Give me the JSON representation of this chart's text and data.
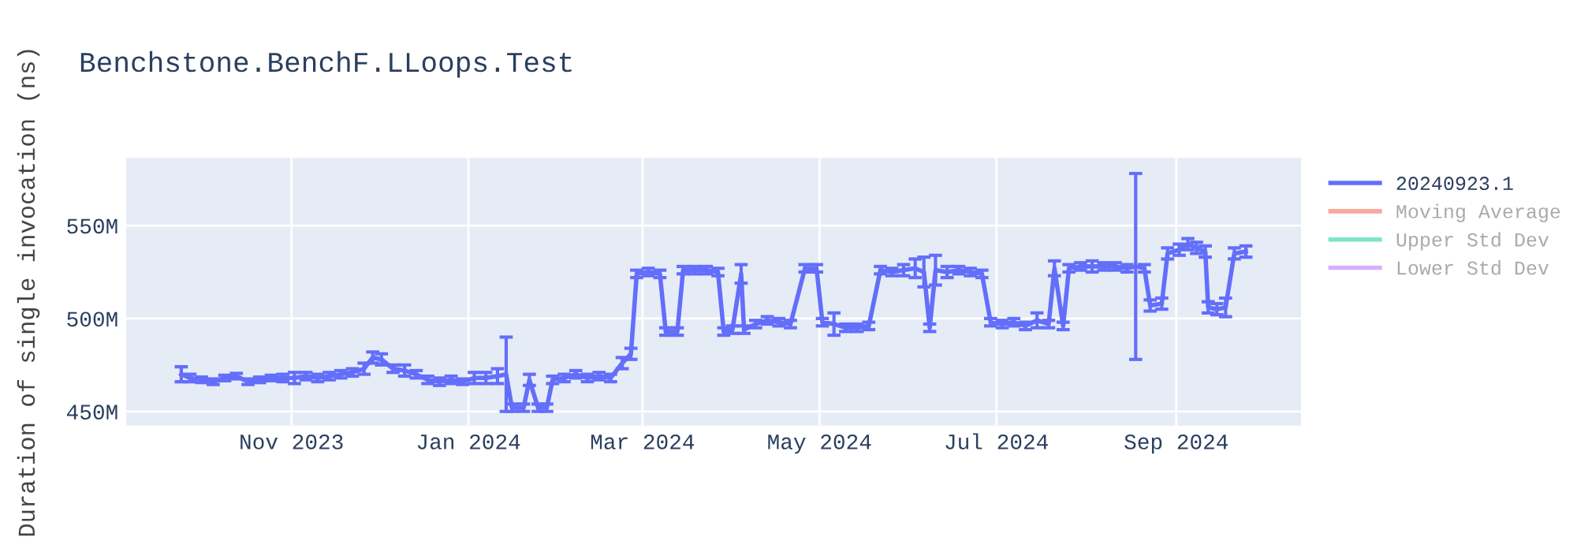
{
  "chart_data": {
    "type": "line",
    "title": "Benchstone.BenchF.LLoops.Test",
    "ylabel": "Duration of single invocation (ns)",
    "x": [
      "2023-09-24",
      "2023-09-27",
      "2023-10-01",
      "2023-10-05",
      "2023-10-09",
      "2023-10-13",
      "2023-10-17",
      "2023-10-21",
      "2023-10-25",
      "2023-10-29",
      "2023-11-02",
      "2023-11-06",
      "2023-11-10",
      "2023-11-14",
      "2023-11-18",
      "2023-11-22",
      "2023-11-26",
      "2023-11-29",
      "2023-12-02",
      "2023-12-06",
      "2023-12-10",
      "2023-12-14",
      "2023-12-18",
      "2023-12-22",
      "2023-12-26",
      "2023-12-30",
      "2024-01-03",
      "2024-01-07",
      "2024-01-11",
      "2024-01-14",
      "2024-01-16",
      "2024-01-20",
      "2024-01-22",
      "2024-01-25",
      "2024-01-28",
      "2024-01-30",
      "2024-02-03",
      "2024-02-07",
      "2024-02-11",
      "2024-02-15",
      "2024-02-19",
      "2024-02-23",
      "2024-02-26",
      "2024-02-28",
      "2024-03-03",
      "2024-03-07",
      "2024-03-09",
      "2024-03-13",
      "2024-03-15",
      "2024-03-19",
      "2024-03-23",
      "2024-03-27",
      "2024-03-29",
      "2024-04-01",
      "2024-04-04",
      "2024-04-05",
      "2024-04-09",
      "2024-04-13",
      "2024-04-17",
      "2024-04-21",
      "2024-04-26",
      "2024-04-30",
      "2024-05-02",
      "2024-05-06",
      "2024-05-10",
      "2024-05-14",
      "2024-05-18",
      "2024-05-22",
      "2024-05-26",
      "2024-05-30",
      "2024-06-03",
      "2024-06-06",
      "2024-06-08",
      "2024-06-10",
      "2024-06-14",
      "2024-06-18",
      "2024-06-22",
      "2024-06-26",
      "2024-06-29",
      "2024-07-03",
      "2024-07-07",
      "2024-07-11",
      "2024-07-15",
      "2024-07-19",
      "2024-07-21",
      "2024-07-24",
      "2024-07-26",
      "2024-07-30",
      "2024-08-03",
      "2024-08-07",
      "2024-08-11",
      "2024-08-15",
      "2024-08-18",
      "2024-08-21",
      "2024-08-23",
      "2024-08-27",
      "2024-08-29",
      "2024-09-02",
      "2024-09-05",
      "2024-09-08",
      "2024-09-11",
      "2024-09-12",
      "2024-09-15",
      "2024-09-18",
      "2024-09-21",
      "2024-09-25"
    ],
    "series": [
      {
        "name": "20240923.1",
        "color": "#636efa",
        "values": [
          470000000,
          468000000,
          467000000,
          466000000,
          468000000,
          469000000,
          466000000,
          467000000,
          468000000,
          468000000,
          468000000,
          469000000,
          468000000,
          469000000,
          470000000,
          471000000,
          473000000,
          479000000,
          478000000,
          473000000,
          472000000,
          470000000,
          467000000,
          466000000,
          467000000,
          466000000,
          468000000,
          468000000,
          469000000,
          470000000,
          452000000,
          452000000,
          467000000,
          452000000,
          452000000,
          467000000,
          468000000,
          470000000,
          468000000,
          469000000,
          468000000,
          476000000,
          481000000,
          524000000,
          525000000,
          524000000,
          493000000,
          493000000,
          526000000,
          526000000,
          526000000,
          525000000,
          493000000,
          494000000,
          524000000,
          494000000,
          497000000,
          499000000,
          498000000,
          497000000,
          527000000,
          527000000,
          498000000,
          497000000,
          495000000,
          495000000,
          496000000,
          526000000,
          525000000,
          526000000,
          527000000,
          525000000,
          495000000,
          526000000,
          525000000,
          526000000,
          525000000,
          524000000,
          498000000,
          497000000,
          498000000,
          496000000,
          499000000,
          497000000,
          527000000,
          496000000,
          527000000,
          528000000,
          528000000,
          528000000,
          528000000,
          527000000,
          528000000,
          527000000,
          507000000,
          508000000,
          535000000,
          537000000,
          540000000,
          538000000,
          536000000,
          506000000,
          505000000,
          506000000,
          535000000,
          536000000
        ],
        "errors": [
          4000000,
          2000000,
          1500000,
          1500000,
          1500000,
          1500000,
          1500000,
          1500000,
          1500000,
          2000000,
          3000000,
          2000000,
          2000000,
          2000000,
          2000000,
          2000000,
          3000000,
          3000000,
          3000000,
          2000000,
          3000000,
          2000000,
          2000000,
          2000000,
          2000000,
          1500000,
          3000000,
          3000000,
          4000000,
          20000000,
          2000000,
          2000000,
          3000000,
          2000000,
          2000000,
          2000000,
          2000000,
          2000000,
          2000000,
          2000000,
          2000000,
          3000000,
          3000000,
          2000000,
          2000000,
          2000000,
          2000000,
          2000000,
          2000000,
          2000000,
          2000000,
          2000000,
          2000000,
          2000000,
          5000000,
          2000000,
          2000000,
          2000000,
          2000000,
          2000000,
          2000000,
          2000000,
          2000000,
          6000000,
          2000000,
          2000000,
          2000000,
          2000000,
          2000000,
          3000000,
          5000000,
          8000000,
          2000000,
          8000000,
          3000000,
          2000000,
          2000000,
          2000000,
          2000000,
          2000000,
          2000000,
          2000000,
          4000000,
          2000000,
          4000000,
          2000000,
          2000000,
          2000000,
          3000000,
          2000000,
          2000000,
          2000000,
          50000000,
          2000000,
          3000000,
          3000000,
          3000000,
          3000000,
          3000000,
          3000000,
          3000000,
          3000000,
          3000000,
          5000000,
          3000000,
          3000000
        ]
      },
      {
        "name": "Moving Average",
        "color": "#ef553b",
        "values": [
          null,
          null,
          null,
          null,
          null,
          null,
          null,
          null,
          null,
          null,
          null,
          null,
          null,
          null,
          null,
          null,
          null,
          null,
          null,
          null,
          null,
          null,
          null,
          null,
          null,
          null,
          null,
          null,
          null,
          null,
          null,
          null,
          null,
          null,
          null,
          null,
          null,
          null,
          null,
          null,
          null,
          null,
          null,
          null,
          null,
          null,
          null,
          null,
          null,
          null,
          null,
          null,
          null,
          null,
          null,
          null,
          null,
          null,
          null,
          null,
          null,
          null,
          null,
          null,
          null,
          null,
          null,
          null,
          null,
          null,
          null,
          null,
          null,
          null,
          null,
          null,
          null,
          null,
          null,
          null,
          null,
          null,
          null,
          null,
          null,
          null,
          null,
          null,
          null,
          null,
          null,
          null,
          null,
          null,
          null,
          null,
          null,
          null,
          null,
          null,
          null,
          null,
          null,
          null,
          null,
          null
        ]
      },
      {
        "name": "Upper Std Dev",
        "color": "#00cc96",
        "values": [
          null,
          null,
          null,
          null,
          null,
          null,
          null,
          null,
          null,
          null,
          null,
          null,
          null,
          null,
          null,
          null,
          null,
          null,
          null,
          null,
          null,
          null,
          null,
          null,
          null,
          null,
          null,
          null,
          null,
          null,
          null,
          null,
          null,
          null,
          null,
          null,
          null,
          null,
          null,
          null,
          null,
          null,
          null,
          null,
          null,
          null,
          null,
          null,
          null,
          null,
          null,
          null,
          null,
          null,
          null,
          null,
          null,
          null,
          null,
          null,
          null,
          null,
          null,
          null,
          null,
          null,
          null,
          null,
          null,
          null,
          null,
          null,
          null,
          null,
          null,
          null,
          null,
          null,
          null,
          null,
          null,
          null,
          null,
          null,
          null,
          null,
          null,
          null,
          null,
          null,
          null,
          null,
          null,
          null,
          null,
          null,
          null,
          null,
          null,
          null,
          null,
          null,
          null,
          null,
          null,
          null
        ]
      },
      {
        "name": "Lower Std Dev",
        "color": "#ab63fa",
        "values": [
          null,
          null,
          null,
          null,
          null,
          null,
          null,
          null,
          null,
          null,
          null,
          null,
          null,
          null,
          null,
          null,
          null,
          null,
          null,
          null,
          null,
          null,
          null,
          null,
          null,
          null,
          null,
          null,
          null,
          null,
          null,
          null,
          null,
          null,
          null,
          null,
          null,
          null,
          null,
          null,
          null,
          null,
          null,
          null,
          null,
          null,
          null,
          null,
          null,
          null,
          null,
          null,
          null,
          null,
          null,
          null,
          null,
          null,
          null,
          null,
          null,
          null,
          null,
          null,
          null,
          null,
          null,
          null,
          null,
          null,
          null,
          null,
          null,
          null,
          null,
          null,
          null,
          null,
          null,
          null,
          null,
          null,
          null,
          null,
          null,
          null,
          null,
          null,
          null,
          null,
          null,
          null,
          null,
          null,
          null,
          null,
          null,
          null,
          null,
          null,
          null,
          null,
          null,
          null,
          null,
          null
        ]
      }
    ],
    "xlim": [
      "2023-09-05",
      "2024-10-14"
    ],
    "xticks": [
      {
        "value": "2023-11-01",
        "label": "Nov 2023"
      },
      {
        "value": "2024-01-01",
        "label": "Jan 2024"
      },
      {
        "value": "2024-03-01",
        "label": "Mar 2024"
      },
      {
        "value": "2024-05-01",
        "label": "May 2024"
      },
      {
        "value": "2024-07-01",
        "label": "Jul 2024"
      },
      {
        "value": "2024-09-01",
        "label": "Sep 2024"
      }
    ],
    "ylim": [
      442400000,
      586400000
    ],
    "yticks": [
      {
        "value": 450000000,
        "label": "450M"
      },
      {
        "value": 500000000,
        "label": "500M"
      },
      {
        "value": 550000000,
        "label": "550M"
      }
    ],
    "grid": true,
    "legend": "top right",
    "marker": "none",
    "line_style": "solid"
  }
}
